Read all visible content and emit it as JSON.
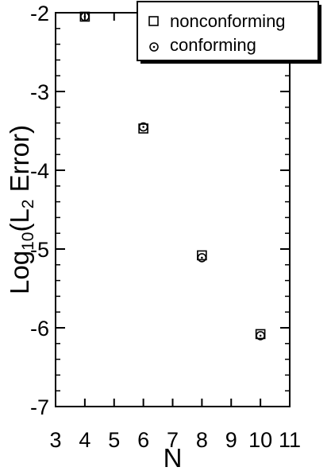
{
  "chart_data": {
    "type": "scatter",
    "title": "",
    "xlabel": "N",
    "ylabel_main": "Log",
    "ylabel_sub": "10",
    "ylabel_paren_open": "(L",
    "ylabel_l_sub": "2",
    "ylabel_rest": " Error)",
    "xlim": [
      3,
      11
    ],
    "ylim": [
      -7,
      -2
    ],
    "x_ticks": [
      3,
      4,
      5,
      6,
      7,
      8,
      9,
      10,
      11
    ],
    "y_ticks": [
      -7,
      -6,
      -5,
      -4,
      -3,
      -2
    ],
    "legend_position": "top-right",
    "series": [
      {
        "name": "nonconforming",
        "marker": "square",
        "x": [
          4,
          6,
          8,
          10
        ],
        "y": [
          -2.05,
          -3.47,
          -5.08,
          -6.08
        ]
      },
      {
        "name": "conforming",
        "marker": "circle",
        "x": [
          4,
          6,
          8,
          10
        ],
        "y": [
          -2.05,
          -3.45,
          -5.11,
          -6.1
        ]
      }
    ]
  }
}
